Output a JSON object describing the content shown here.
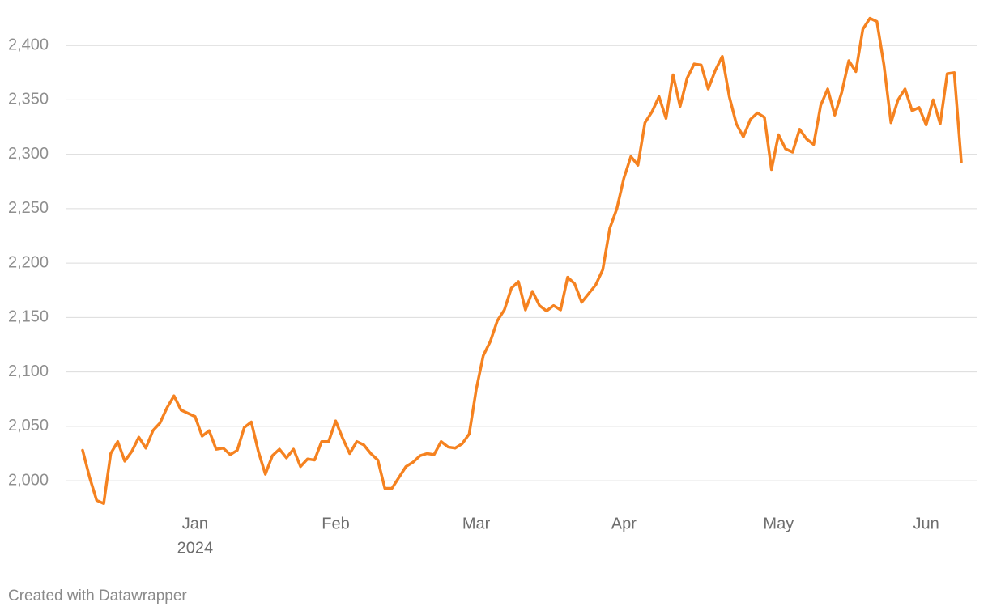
{
  "chart_data": {
    "type": "line",
    "categories": [
      null,
      null,
      null,
      null,
      null,
      null,
      null,
      null,
      null,
      null,
      null,
      null,
      null,
      null,
      null,
      null,
      "Jan",
      null,
      null,
      null,
      null,
      null,
      null,
      null,
      null,
      null,
      null,
      null,
      null,
      null,
      null,
      null,
      null,
      null,
      null,
      null,
      "Feb",
      null,
      null,
      null,
      null,
      null,
      null,
      null,
      null,
      null,
      null,
      null,
      null,
      null,
      null,
      null,
      null,
      null,
      null,
      null,
      "Mar",
      null,
      null,
      null,
      null,
      null,
      null,
      null,
      null,
      null,
      null,
      null,
      null,
      null,
      null,
      null,
      null,
      null,
      null,
      null,
      null,
      "Apr",
      null,
      null,
      null,
      null,
      null,
      null,
      null,
      null,
      null,
      null,
      null,
      null,
      null,
      null,
      null,
      null,
      null,
      null,
      null,
      null,
      null,
      "May",
      null,
      null,
      null,
      null,
      null,
      null,
      null,
      null,
      null,
      null,
      null,
      null,
      null,
      null,
      null,
      null,
      null,
      null,
      null,
      null,
      "Jun",
      null,
      null,
      null,
      null,
      null
    ],
    "year_label": "2024",
    "series": [
      {
        "color": "#f58220",
        "values": [
          2028,
          2003,
          1982,
          1979,
          2025,
          2036,
          2018,
          2027,
          2040,
          2030,
          2046,
          2053,
          2067,
          2078,
          2065,
          2062,
          2059,
          2041,
          2046,
          2029,
          2030,
          2024,
          2028,
          2049,
          2054,
          2027,
          2006,
          2023,
          2029,
          2021,
          2029,
          2013,
          2020,
          2019,
          2036,
          2036,
          2055,
          2039,
          2025,
          2036,
          2033,
          2025,
          2019,
          1993,
          1993,
          2003,
          2013,
          2017,
          2023,
          2025,
          2024,
          2036,
          2031,
          2030,
          2034,
          2043,
          2084,
          2115,
          2128,
          2147,
          2157,
          2177,
          2183,
          2157,
          2174,
          2161,
          2156,
          2161,
          2157,
          2187,
          2181,
          2164,
          2172,
          2180,
          2194,
          2232,
          2250,
          2278,
          2298,
          2290,
          2329,
          2339,
          2353,
          2333,
          2373,
          2344,
          2370,
          2383,
          2382,
          2360,
          2377,
          2390,
          2353,
          2328,
          2316,
          2332,
          2338,
          2334,
          2286,
          2318,
          2305,
          2302,
          2323,
          2314,
          2309,
          2345,
          2360,
          2336,
          2357,
          2386,
          2376,
          2415,
          2425,
          2422,
          2382,
          2329,
          2350,
          2360,
          2340,
          2343,
          2327,
          2350,
          2328,
          2374,
          2375,
          2293
        ]
      }
    ],
    "ylim": [
      1980,
      2430
    ],
    "yticks": [
      {
        "value": 2000,
        "label": "2,000"
      },
      {
        "value": 2050,
        "label": "2,050"
      },
      {
        "value": 2100,
        "label": "2,100"
      },
      {
        "value": 2150,
        "label": "2,150"
      },
      {
        "value": 2200,
        "label": "2,200"
      },
      {
        "value": 2250,
        "label": "2,250"
      },
      {
        "value": 2300,
        "label": "2,300"
      },
      {
        "value": 2350,
        "label": "2,350"
      },
      {
        "value": 2400,
        "label": "2,400"
      }
    ],
    "grid": true,
    "credit": "Created with Datawrapper"
  }
}
